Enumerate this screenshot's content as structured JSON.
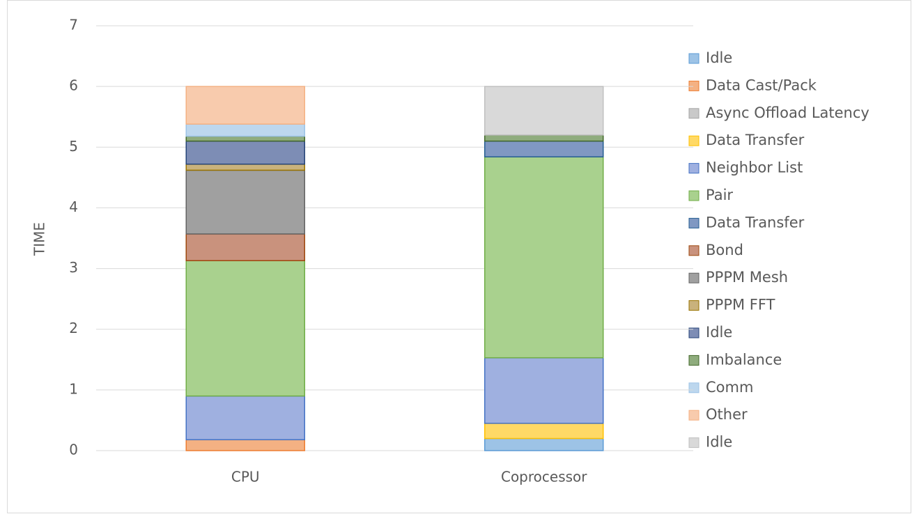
{
  "chart_data": {
    "type": "stacked_bar",
    "y_label": "TIME",
    "categories": [
      "CPU",
      "Coprocessor"
    ],
    "ylim": [
      0,
      7
    ],
    "yticks": [
      0,
      1,
      2,
      3,
      4,
      5,
      6,
      7
    ],
    "grid": true,
    "legend": "right",
    "series": [
      {
        "name": "Idle",
        "color": "#9dc3e6",
        "edge_color": "#5b9bd5",
        "values": [
          0,
          0.2
        ]
      },
      {
        "name": "Data Cast/Pack",
        "color": "#f4b183",
        "edge_color": "#ed7d31",
        "values": [
          0.18,
          0
        ]
      },
      {
        "name": "Async Offload Latency",
        "color": "#c9c9c9",
        "edge_color": "#a5a5a5",
        "values": [
          0,
          0
        ]
      },
      {
        "name": "Data Transfer",
        "color": "#ffd966",
        "edge_color": "#ffc000",
        "values": [
          0,
          0.25
        ]
      },
      {
        "name": "Neighbor List",
        "color": "#9fb0e0",
        "edge_color": "#4472c4",
        "values": [
          0.72,
          1.08
        ]
      },
      {
        "name": "Pair",
        "color": "#a9d18e",
        "edge_color": "#70ad47",
        "values": [
          2.23,
          3.31
        ]
      },
      {
        "name": "Data Transfer",
        "color": "#8098c2",
        "edge_color": "#255e91",
        "values": [
          0,
          0.26
        ]
      },
      {
        "name": "Bond",
        "color": "#c9927d",
        "edge_color": "#9e480e",
        "values": [
          0.44,
          0
        ]
      },
      {
        "name": "PPPM Mesh",
        "color": "#a0a0a0",
        "edge_color": "#636363",
        "values": [
          1.05,
          0
        ]
      },
      {
        "name": "PPPM FFT",
        "color": "#c9b27c",
        "edge_color": "#997300",
        "values": [
          0.1,
          0
        ]
      },
      {
        "name": "Idle",
        "color": "#7d8db5",
        "edge_color": "#264478",
        "values": [
          0.38,
          0
        ]
      },
      {
        "name": "Imbalance",
        "color": "#8fac7d",
        "edge_color": "#43682b",
        "values": [
          0.08,
          0.1
        ]
      },
      {
        "name": "Comm",
        "color": "#bdd7ee",
        "edge_color": "#9dc3e6",
        "values": [
          0.2,
          0
        ]
      },
      {
        "name": "Other",
        "color": "#f8cbad",
        "edge_color": "#f4b183",
        "values": [
          0.62,
          0
        ]
      },
      {
        "name": "Idle",
        "color": "#d9d9d9",
        "edge_color": "#c0c0c0",
        "values": [
          0,
          0.8
        ]
      }
    ]
  }
}
